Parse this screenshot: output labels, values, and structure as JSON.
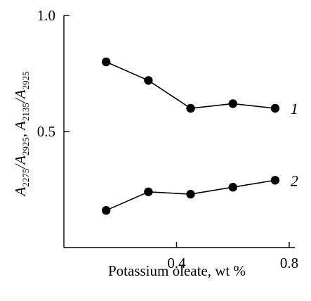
{
  "chart_data": {
    "type": "line",
    "xlabel": "Potassium oleate, wt %",
    "ylabel": {
      "prefix1": "A",
      "sub1": "2275",
      "slash1": "/A",
      "sub2": "2925",
      "comma": ", A",
      "sub3": "2135",
      "slash2": "/A",
      "sub4": "2925"
    },
    "xlim": [
      0.0,
      0.82
    ],
    "ylim": [
      0.0,
      1.0
    ],
    "xticks": [
      0.4,
      0.8
    ],
    "xtick_labels": [
      "0.4",
      "0.8"
    ],
    "yticks": [
      0.5,
      1.0
    ],
    "ytick_labels": [
      "0.5",
      "1.0"
    ],
    "grid": false,
    "legend": "none",
    "series": [
      {
        "name": "1",
        "x": [
          0.15,
          0.3,
          0.45,
          0.6,
          0.75
        ],
        "y": [
          0.8,
          0.72,
          0.6,
          0.62,
          0.6
        ]
      },
      {
        "name": "2",
        "x": [
          0.15,
          0.3,
          0.45,
          0.6,
          0.75
        ],
        "y": [
          0.16,
          0.24,
          0.23,
          0.26,
          0.29
        ]
      }
    ]
  }
}
